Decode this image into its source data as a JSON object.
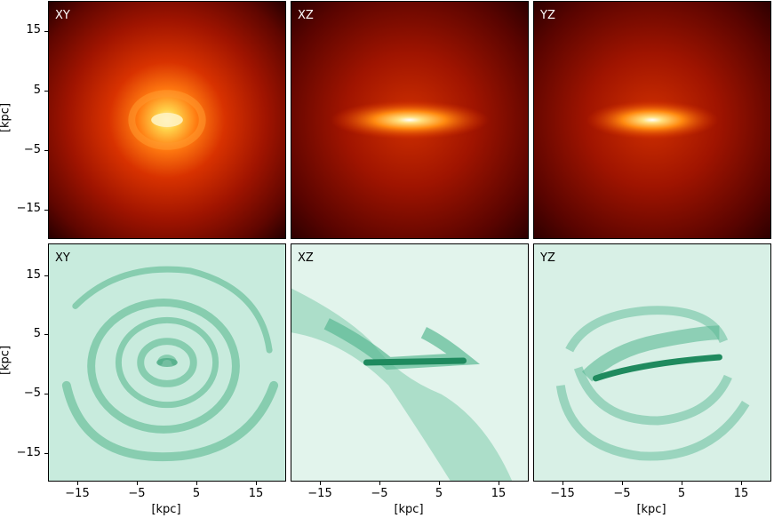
{
  "panels": {
    "top": [
      {
        "label": "XY",
        "colormap": "red"
      },
      {
        "label": "XZ",
        "colormap": "red"
      },
      {
        "label": "YZ",
        "colormap": "red"
      }
    ],
    "bottom": [
      {
        "label": "XY",
        "colormap": "green"
      },
      {
        "label": "XZ",
        "colormap": "green"
      },
      {
        "label": "YZ",
        "colormap": "green"
      }
    ]
  },
  "axes": {
    "unit_label": "[kpc]",
    "y_ticks": [
      "15",
      "5",
      "−5",
      "−15"
    ],
    "x_ticks": [
      "−15",
      "−5",
      "5",
      "15"
    ]
  },
  "colors": {
    "red_bg": "#5a0000",
    "red_mid": "#c42200",
    "red_core": "#ffffff",
    "green_bg": "#e8f6f1",
    "green_mid": "#8fd0b6",
    "green_dark": "#1a8c5e"
  }
}
